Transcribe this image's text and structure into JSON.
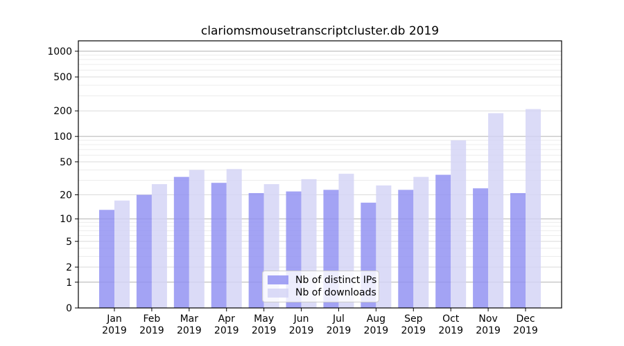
{
  "chart_data": {
    "type": "bar",
    "title": "clariomsmousetranscriptcluster.db 2019",
    "categories": [
      "Jan",
      "Feb",
      "Mar",
      "Apr",
      "May",
      "Jun",
      "Jul",
      "Aug",
      "Sep",
      "Oct",
      "Nov",
      "Dec"
    ],
    "year_label": "2019",
    "series": [
      {
        "name": "Nb of distinct IPs",
        "color": "#8f8ff1",
        "values": [
          13,
          20,
          33,
          28,
          21,
          22,
          23,
          16,
          23,
          35,
          24,
          21
        ]
      },
      {
        "name": "Nb of downloads",
        "color": "#d3d3f5",
        "values": [
          17,
          27,
          40,
          41,
          27,
          31,
          36,
          26,
          33,
          90,
          188,
          210
        ]
      }
    ],
    "y_ticks": [
      0,
      1,
      2,
      5,
      10,
      20,
      50,
      100,
      200,
      500,
      1000
    ],
    "xlabel": "",
    "ylabel": "",
    "ylim": [
      0,
      1000
    ],
    "y_scale": "log10(value+1)",
    "grid": true,
    "legend_position": "lower center",
    "colors": {
      "grid_major": "#b0b0b0",
      "grid_labeled": "#dadada",
      "grid_minor": "#ececec",
      "axis": "#000000",
      "text": "#000000"
    }
  }
}
